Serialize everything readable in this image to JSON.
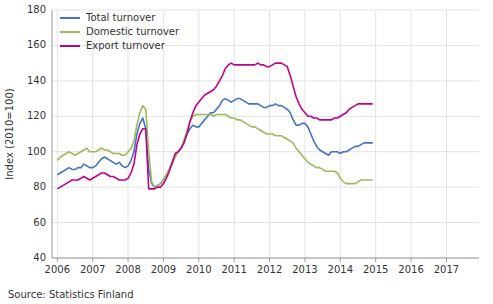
{
  "chart_data": {
    "type": "line",
    "ylabel": "Index (2010=100)",
    "source": "Source: Statistics Finland",
    "xlim": [
      2005.85,
      2017.92
    ],
    "xticks": [
      2006,
      2007,
      2008,
      2009,
      2010,
      2011,
      2012,
      2013,
      2014,
      2015,
      2016,
      2017
    ],
    "ylim": [
      40,
      180
    ],
    "yticks": [
      40,
      60,
      80,
      100,
      120,
      140,
      160,
      180
    ],
    "grid": true,
    "legend": "upper-left",
    "x": [
      2006,
      2006.0833333333333,
      2006.1666666666667,
      2006.25,
      2006.3333333333333,
      2006.4166666666667,
      2006.5,
      2006.5833333333333,
      2006.6666666666667,
      2006.75,
      2006.8333333333333,
      2006.9166666666667,
      2007,
      2007.0833333333333,
      2007.1666666666667,
      2007.25,
      2007.3333333333333,
      2007.4166666666667,
      2007.5,
      2007.5833333333333,
      2007.6666666666667,
      2007.75,
      2007.8333333333333,
      2007.9166666666667,
      2008,
      2008.0833333333333,
      2008.1666666666667,
      2008.25,
      2008.3333333333333,
      2008.4166666666667,
      2008.5,
      2008.5833333333333,
      2008.6666666666667,
      2008.75,
      2008.8333333333333,
      2008.9166666666667,
      2009,
      2009.0833333333333,
      2009.1666666666667,
      2009.25,
      2009.3333333333333,
      2009.4166666666667,
      2009.5,
      2009.5833333333333,
      2009.6666666666667,
      2009.75,
      2009.8333333333333,
      2009.9166666666667,
      2010,
      2010.0833333333333,
      2010.1666666666667,
      2010.25,
      2010.3333333333333,
      2010.4166666666667,
      2010.5,
      2010.5833333333333,
      2010.6666666666667,
      2010.75,
      2010.8333333333333,
      2010.9166666666667,
      2011,
      2011.0833333333333,
      2011.1666666666667,
      2011.25,
      2011.3333333333333,
      2011.4166666666667,
      2011.5,
      2011.5833333333333,
      2011.6666666666667,
      2011.75,
      2011.8333333333333,
      2011.9166666666667,
      2012,
      2012.0833333333333,
      2012.1666666666667,
      2012.25,
      2012.3333333333333,
      2012.4166666666667,
      2012.5,
      2012.5833333333333,
      2012.6666666666667,
      2012.75,
      2012.8333333333333,
      2012.9166666666667,
      2013,
      2013.0833333333333,
      2013.1666666666667,
      2013.25,
      2013.3333333333333,
      2013.4166666666667,
      2013.5,
      2013.5833333333333,
      2013.6666666666667,
      2013.75,
      2013.8333333333333,
      2013.9166666666667,
      2014,
      2014.0833333333333,
      2014.1666666666667,
      2014.25,
      2014.3333333333333,
      2014.4166666666667,
      2014.5,
      2014.5833333333333,
      2014.6666666666667,
      2014.75,
      2014.8333333333333,
      2014.9166666666667
    ],
    "series": [
      {
        "name": "Total turnover",
        "color": "#4472c4",
        "values": [
          87,
          88,
          89,
          90,
          91,
          90,
          90,
          91,
          91,
          93,
          92,
          91,
          91,
          92,
          94,
          96,
          97,
          96,
          95,
          94,
          93,
          94,
          92,
          91,
          92,
          95,
          100,
          110,
          116,
          119,
          113,
          90,
          82,
          80,
          81,
          82,
          84,
          87,
          90,
          94,
          98,
          100,
          102,
          106,
          110,
          113,
          115,
          114,
          114,
          116,
          118,
          120,
          122,
          122,
          124,
          126,
          129,
          130,
          129,
          128,
          129,
          130,
          130,
          129,
          128,
          127,
          127,
          127,
          127,
          126,
          125,
          125,
          126,
          126,
          127,
          126,
          126,
          125,
          124,
          122,
          118,
          115,
          115,
          116,
          116,
          114,
          110,
          106,
          103,
          101,
          100,
          99,
          98,
          100,
          100,
          100,
          99,
          100,
          100,
          101,
          102,
          103,
          103,
          104,
          105,
          105,
          105,
          105
        ]
      },
      {
        "name": "Domestic turnover",
        "color": "#9bbb59",
        "values": [
          95,
          97,
          98,
          99,
          100,
          99,
          98,
          99,
          100,
          101,
          102,
          100,
          100,
          100,
          101,
          102,
          101,
          101,
          100,
          99,
          99,
          99,
          98,
          98,
          100,
          102,
          106,
          115,
          122,
          126,
          124,
          100,
          83,
          80,
          81,
          82,
          84,
          87,
          90,
          93,
          97,
          100,
          102,
          107,
          112,
          117,
          120,
          121,
          121,
          121,
          121,
          121,
          121,
          120,
          121,
          121,
          121,
          121,
          120,
          119,
          119,
          118,
          118,
          117,
          116,
          115,
          114,
          114,
          113,
          112,
          111,
          110,
          110,
          110,
          109,
          109,
          109,
          108,
          107,
          106,
          105,
          102,
          100,
          98,
          96,
          94,
          93,
          92,
          91,
          91,
          90,
          89,
          89,
          89,
          89,
          88,
          85,
          83,
          82,
          82,
          82,
          82,
          83,
          84,
          84,
          84,
          84,
          84
        ]
      },
      {
        "name": "Export turnover",
        "color": "#c0008f",
        "values": [
          79,
          80,
          81,
          82,
          83,
          84,
          84,
          84,
          85,
          86,
          85,
          84,
          85,
          86,
          87,
          88,
          88,
          87,
          86,
          86,
          85,
          84,
          84,
          84,
          85,
          88,
          93,
          104,
          110,
          113,
          113,
          79,
          79,
          79,
          80,
          80,
          82,
          85,
          89,
          94,
          99,
          100,
          102,
          105,
          110,
          117,
          122,
          126,
          128,
          130,
          132,
          133,
          134,
          135,
          137,
          140,
          143,
          147,
          149,
          150,
          149,
          149,
          149,
          149,
          149,
          149,
          149,
          149,
          150,
          149,
          149,
          148,
          148,
          149,
          150,
          150,
          150,
          149,
          148,
          143,
          137,
          131,
          127,
          124,
          122,
          120,
          120,
          119,
          119,
          118,
          118,
          118,
          118,
          118,
          119,
          119,
          120,
          121,
          122,
          124,
          125,
          126,
          127,
          127,
          127,
          127,
          127,
          127
        ]
      }
    ]
  }
}
